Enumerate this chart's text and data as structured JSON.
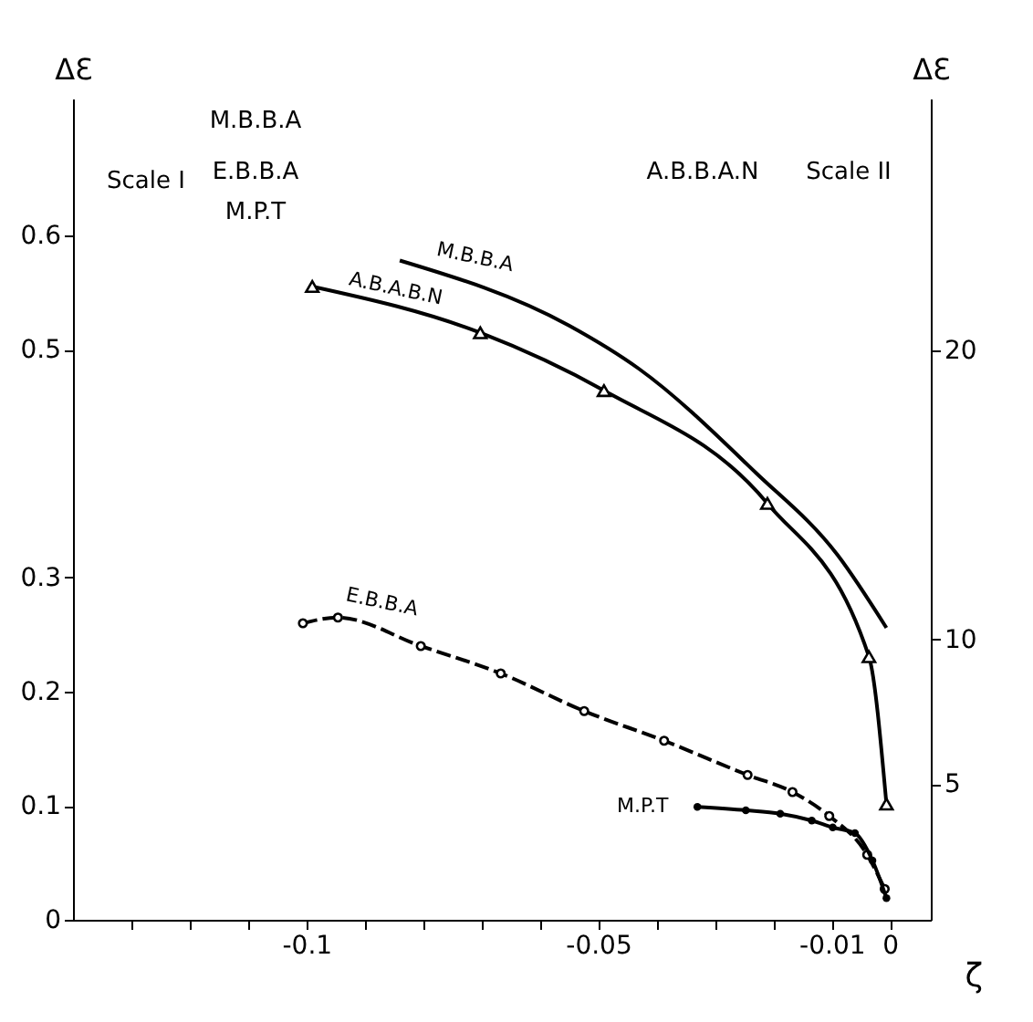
{
  "chart_data": {
    "type": "line",
    "xlabel": "ζ",
    "ylabel": "ΔƐ",
    "y2label": "ΔƐ",
    "annotations": [
      "Scale I",
      "M.B.B.A",
      "E.B.B.A",
      "M.P.T",
      "A.B.B.A.N",
      "Scale II"
    ],
    "xlim": [
      -0.14,
      0.007
    ],
    "xticks": [
      {
        "value": -0.13,
        "label": null
      },
      {
        "value": -0.12,
        "label": null
      },
      {
        "value": -0.11,
        "label": null
      },
      {
        "value": -0.1,
        "label": "-0.1"
      },
      {
        "value": -0.09,
        "label": null
      },
      {
        "value": -0.08,
        "label": null
      },
      {
        "value": -0.07,
        "label": null
      },
      {
        "value": -0.06,
        "label": null
      },
      {
        "value": -0.05,
        "label": "-0.05"
      },
      {
        "value": -0.04,
        "label": null
      },
      {
        "value": -0.03,
        "label": null
      },
      {
        "value": -0.02,
        "label": null
      },
      {
        "value": -0.01,
        "label": "-0.01"
      },
      {
        "value": 0,
        "label": "0"
      }
    ],
    "ylim": [
      0,
      0.72
    ],
    "yticks": [
      0,
      0.1,
      0.2,
      0.3,
      0.5,
      0.6
    ],
    "y2lim": [
      0.3,
      28.7
    ],
    "y2ticks": [
      5,
      10,
      20
    ],
    "grid": false,
    "legend": false,
    "series": [
      {
        "name": "M.B.B.A",
        "color": "#000000",
        "marker": "none",
        "line_style": "solid",
        "x": [
          -0.084,
          -0.055,
          -0.043,
          -0.023,
          -0.009,
          -0.0006
        ],
        "values": [
          0.578,
          0.521,
          0.483,
          0.392,
          0.32,
          0.256
        ]
      },
      {
        "name": "E.B.B.A",
        "color": "#000000",
        "marker": "circle",
        "line_style": "dashed",
        "x": [
          -0.1006,
          -0.0946,
          -0.0804,
          -0.0667,
          -0.0524,
          -0.0387,
          -0.0244,
          -0.0167,
          -0.0104,
          -0.0039,
          -0.0009
        ],
        "values": [
          0.26,
          0.265,
          0.24,
          0.216,
          0.183,
          0.157,
          0.127,
          0.112,
          0.091,
          0.057,
          0.027
        ]
      },
      {
        "name": "M.P.T",
        "color": "#000000",
        "marker": "circle",
        "line_style": "solid",
        "x": [
          -0.033,
          -0.0247,
          -0.0188,
          -0.0134,
          -0.0098,
          -0.006,
          -0.003,
          -0.0006
        ],
        "values": [
          0.099,
          0.096,
          0.093,
          0.087,
          0.081,
          0.076,
          0.052,
          0.019
        ]
      },
      {
        "name": "A.B.A.B.N",
        "color": "#000000",
        "marker": "triangle",
        "line_style": "solid",
        "axis": "y2",
        "x": [
          -0.099,
          -0.0702,
          -0.049,
          -0.021,
          -0.0036,
          -0.0006
        ],
        "values": [
          22.2,
          20.6,
          18.6,
          14.7,
          9.4,
          4.3
        ]
      }
    ]
  }
}
